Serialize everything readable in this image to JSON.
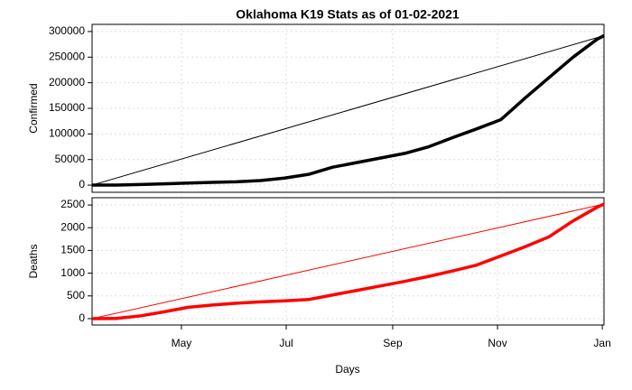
{
  "chart_data": [
    {
      "type": "line",
      "title": "Oklahoma K19 Stats as of 01-02-2021",
      "ylabel": "Confirmed",
      "color": "#000000",
      "x": [
        0,
        14,
        28,
        42,
        56,
        70,
        84,
        98,
        112,
        126,
        140,
        154,
        168,
        182,
        196,
        210,
        224,
        238,
        252,
        266,
        280,
        294,
        298
      ],
      "values": [
        0,
        100,
        1300,
        2600,
        4000,
        5500,
        6600,
        9000,
        13800,
        21000,
        35000,
        44000,
        53000,
        62000,
        75000,
        93000,
        110000,
        128000,
        170000,
        210000,
        250000,
        285000,
        292000
      ],
      "xlim": [
        0,
        298
      ],
      "ylim": [
        -14000,
        314000
      ],
      "yticks": [
        0,
        50000,
        100000,
        150000,
        200000,
        250000,
        300000
      ],
      "grid": true
    },
    {
      "type": "line",
      "ylabel": "Deaths",
      "xlabel": "Days",
      "color": "#ff0000",
      "x": [
        0,
        14,
        28,
        42,
        56,
        70,
        84,
        98,
        112,
        126,
        140,
        154,
        168,
        182,
        196,
        210,
        224,
        238,
        252,
        266,
        280,
        294,
        298
      ],
      "values": [
        0,
        5,
        60,
        150,
        250,
        300,
        340,
        370,
        390,
        420,
        520,
        620,
        720,
        820,
        930,
        1050,
        1180,
        1380,
        1580,
        1800,
        2150,
        2450,
        2520
      ],
      "xlim": [
        0,
        298
      ],
      "ylim": [
        -140,
        2660
      ],
      "yticks": [
        0,
        500,
        1000,
        1500,
        2000,
        2500
      ],
      "xticks": [
        {
          "value": 52,
          "label": "May"
        },
        {
          "value": 113,
          "label": "Jul"
        },
        {
          "value": 175,
          "label": "Sep"
        },
        {
          "value": 236,
          "label": "Nov"
        },
        {
          "value": 297,
          "label": "Jan"
        }
      ],
      "grid": true
    }
  ]
}
